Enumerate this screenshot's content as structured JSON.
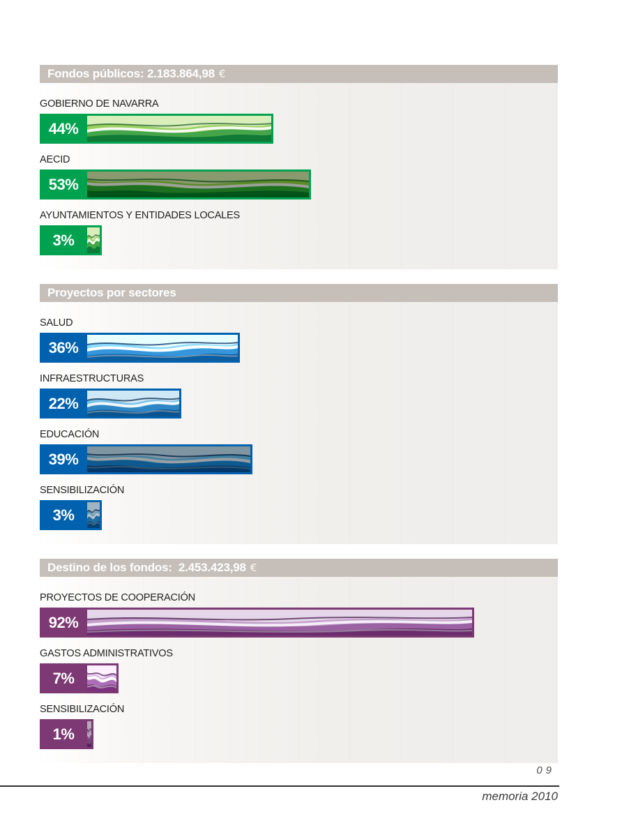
{
  "sections": [
    {
      "title": "Fondos públicos: 2.183.864,98",
      "currency": "€",
      "color": "#00a14f",
      "bars": [
        {
          "label": "GOBIERNO DE NAVARRA",
          "pct": 44,
          "pct_label": "44%"
        },
        {
          "label": "AECID",
          "pct": 53,
          "pct_label": "53%"
        },
        {
          "label": "AYUNTAMIENTOS Y ENTIDADES LOCALES",
          "pct": 3,
          "pct_label": "3%"
        }
      ]
    },
    {
      "title": "Proyectos por sectores",
      "currency": "",
      "color": "#0061ae",
      "bars": [
        {
          "label": "SALUD",
          "pct": 36,
          "pct_label": "36%"
        },
        {
          "label": "INFRAESTRUCTURAS",
          "pct": 22,
          "pct_label": "22%"
        },
        {
          "label": "EDUCACIÓN",
          "pct": 39,
          "pct_label": "39%"
        },
        {
          "label": "SENSIBILIZACIÓN",
          "pct": 3,
          "pct_label": "3%"
        }
      ]
    },
    {
      "title": "Destino de los fondos:  2.453.423,98",
      "currency": "€",
      "color": "#7c3973",
      "bars": [
        {
          "label": "PROYECTOS DE COOPERACIÓN",
          "pct": 92,
          "pct_label": "92%"
        },
        {
          "label": "GASTOS ADMINISTRATIVOS",
          "pct": 7,
          "pct_label": "7%"
        },
        {
          "label": "SENSIBILIZACIÓN",
          "pct": 1,
          "pct_label": "1%"
        }
      ]
    }
  ],
  "footer": {
    "page_number": "09",
    "title": "memoria 2010"
  },
  "chart_data": [
    {
      "type": "bar",
      "orientation": "horizontal",
      "title": "Fondos públicos: 2.183.864,98 €",
      "categories": [
        "GOBIERNO DE NAVARRA",
        "AECID",
        "AYUNTAMIENTOS Y ENTIDADES LOCALES"
      ],
      "values": [
        44,
        53,
        3
      ],
      "unit": "%",
      "value_labels": [
        "44%",
        "53%",
        "3%"
      ],
      "bar_color": "#00a14f",
      "xlim": [
        0,
        100
      ],
      "grid": false,
      "legend": false
    },
    {
      "type": "bar",
      "orientation": "horizontal",
      "title": "Proyectos por sectores",
      "categories": [
        "SALUD",
        "INFRAESTRUCTURAS",
        "EDUCACIÓN",
        "SENSIBILIZACIÓN"
      ],
      "values": [
        36,
        22,
        39,
        3
      ],
      "unit": "%",
      "value_labels": [
        "36%",
        "22%",
        "39%",
        "3%"
      ],
      "bar_color": "#0061ae",
      "xlim": [
        0,
        100
      ],
      "grid": false,
      "legend": false
    },
    {
      "type": "bar",
      "orientation": "horizontal",
      "title": "Destino de los fondos: 2.453.423,98 €",
      "categories": [
        "PROYECTOS DE COOPERACIÓN",
        "GASTOS ADMINISTRATIVOS",
        "SENSIBILIZACIÓN"
      ],
      "values": [
        92,
        7,
        1
      ],
      "unit": "%",
      "value_labels": [
        "92%",
        "7%",
        "1%"
      ],
      "bar_color": "#7c3973",
      "xlim": [
        0,
        100
      ],
      "grid": false,
      "legend": false
    }
  ]
}
